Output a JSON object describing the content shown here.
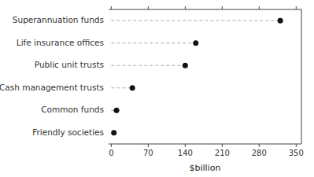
{
  "chart_data": {
    "type": "lollipop",
    "orientation": "horizontal",
    "categories": [
      "Superannuation funds",
      "Life insurance offices",
      "Public unit trusts",
      "Cash management trusts",
      "Common funds",
      "Friendly societies"
    ],
    "values": [
      320,
      160,
      140,
      40,
      10,
      5
    ],
    "color": "#111111",
    "marker": "circle",
    "line_style": "dashed",
    "xlabel": "$billion",
    "xlim": [
      -5,
      360
    ],
    "xticks": [
      0,
      70,
      140,
      210,
      280,
      350
    ],
    "grid": false
  }
}
